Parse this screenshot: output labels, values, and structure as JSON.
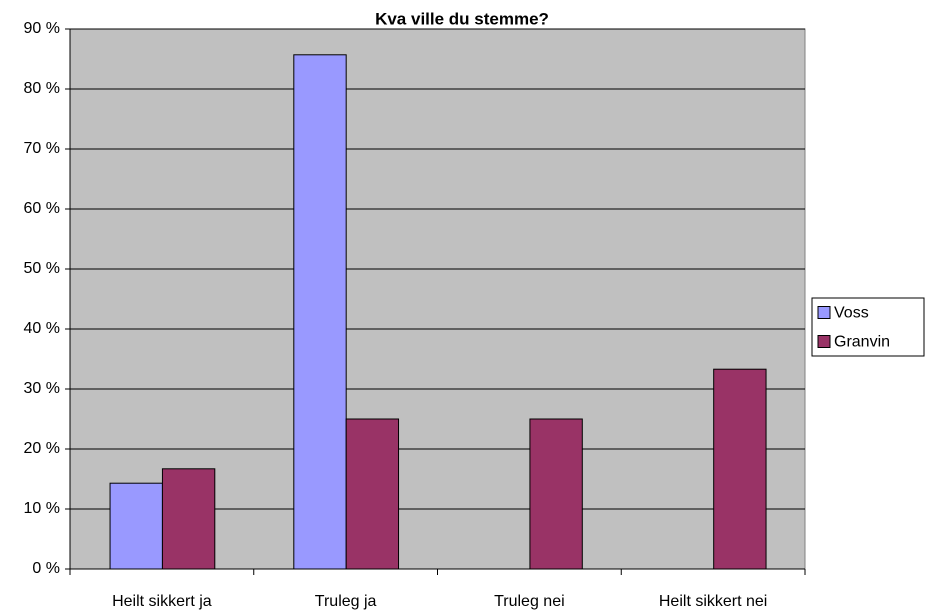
{
  "chart_data": {
    "type": "bar",
    "title": "Kva ville du stemme?",
    "categories": [
      "Heilt sikkert ja",
      "Truleg ja",
      "Truleg nei",
      "Heilt sikkert nei"
    ],
    "series": [
      {
        "name": "Voss",
        "color": "#9999ff",
        "values": [
          14.3,
          85.7,
          0,
          0
        ]
      },
      {
        "name": "Granvin",
        "color": "#993366",
        "values": [
          16.7,
          25,
          25,
          33.3
        ]
      }
    ],
    "ylim": [
      0,
      90
    ],
    "yticks": [
      {
        "value": 0,
        "label": "0 %"
      },
      {
        "value": 10,
        "label": "10 %"
      },
      {
        "value": 20,
        "label": "20 %"
      },
      {
        "value": 30,
        "label": "30 %"
      },
      {
        "value": 40,
        "label": "40 %"
      },
      {
        "value": 50,
        "label": "50 %"
      },
      {
        "value": 60,
        "label": "60 %"
      },
      {
        "value": 70,
        "label": "70 %"
      },
      {
        "value": 80,
        "label": "80 %"
      },
      {
        "value": 90,
        "label": "90 %"
      }
    ],
    "grid": true,
    "plot_background": "#c0c0c0",
    "legend": "right"
  }
}
